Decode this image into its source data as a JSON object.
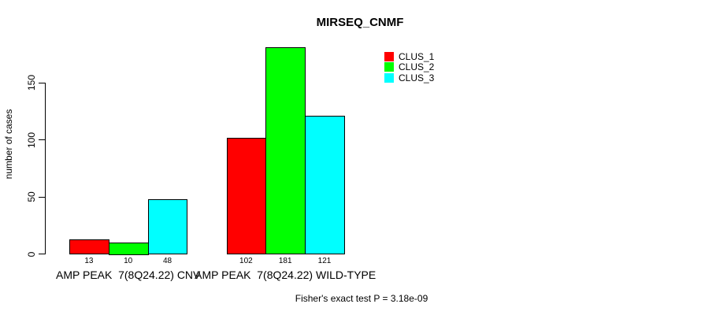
{
  "chart_data": {
    "type": "bar",
    "title": "MIRSEQ_CNMF",
    "xlabel": "",
    "ylabel": "number of cases",
    "categories": [
      "AMP PEAK  7(8Q24.22) CNV",
      "AMP PEAK  7(8Q24.22) WILD-TYPE"
    ],
    "series": [
      {
        "name": "CLUS_1",
        "color": "#ff0000",
        "values": [
          13,
          102
        ]
      },
      {
        "name": "CLUS_2",
        "color": "#00ff00",
        "values": [
          10,
          181
        ]
      },
      {
        "name": "CLUS_3",
        "color": "#00ffff",
        "values": [
          48,
          121
        ]
      }
    ],
    "bar_value_labels": [
      [
        "13",
        "10",
        "48"
      ],
      [
        "102",
        "181",
        "121"
      ]
    ],
    "yticks": [
      0,
      50,
      100,
      150
    ],
    "ylim": [
      0,
      181
    ],
    "grid": false,
    "legend_position": "top-right",
    "bar_edge_color": "#000000",
    "annotation": "Fisher's exact test P = 3.18e-09"
  }
}
